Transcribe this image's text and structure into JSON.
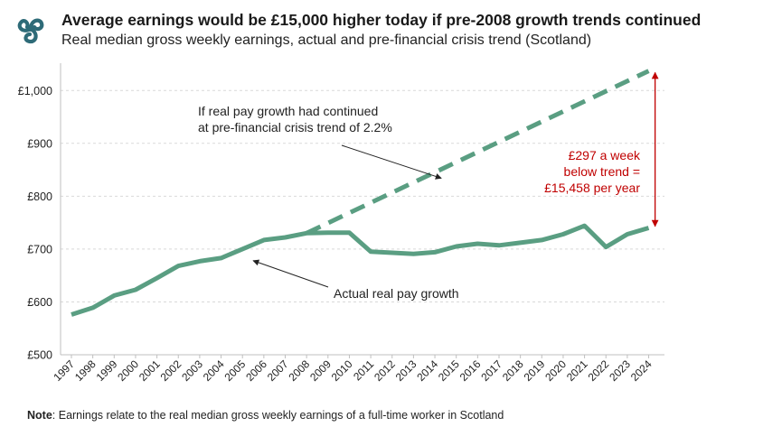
{
  "header": {
    "title": "Average earnings would be £15,000 higher today if pre-2008 growth trends continued",
    "subtitle": "Real median gross weekly earnings, actual and pre-financial crisis trend (Scotland)",
    "logo_icon": "triskele-logo-icon"
  },
  "note": {
    "label": "Note",
    "text": ": Earnings relate to the real median gross weekly earnings of a full-time worker in Scotland"
  },
  "colors": {
    "series": "#5a9e82",
    "annotation": "#c00000",
    "grid": "#d9d9d9",
    "logo": "#2e6b78"
  },
  "chart_data": {
    "type": "line",
    "title": "Real median gross weekly earnings, actual and pre-financial crisis trend (Scotland)",
    "xlabel": "",
    "ylabel": "",
    "ylim": [
      500,
      1050
    ],
    "y_ticks": [
      500,
      600,
      700,
      800,
      900,
      1000
    ],
    "y_tick_labels": [
      "£500",
      "£600",
      "£700",
      "£800",
      "£900",
      "£1,000"
    ],
    "grid": "horizontal dashed",
    "x": [
      1997,
      1998,
      1999,
      2000,
      2001,
      2002,
      2003,
      2004,
      2005,
      2006,
      2007,
      2008,
      2009,
      2010,
      2011,
      2012,
      2013,
      2014,
      2015,
      2016,
      2017,
      2018,
      2019,
      2020,
      2021,
      2022,
      2023,
      2024
    ],
    "x_tick_labels": [
      "1997",
      "1998",
      "1999",
      "2000",
      "2001",
      "2002",
      "2003",
      "2004",
      "2005",
      "2006",
      "2007",
      "2008",
      "2009",
      "2010",
      "2011",
      "2012",
      "2013",
      "2014",
      "2015",
      "2016",
      "2017",
      "2018",
      "2019",
      "2020",
      "2021",
      "2022",
      "2023",
      "2024"
    ],
    "series": [
      {
        "name": "Actual real pay growth",
        "style": "solid",
        "x": [
          1997,
          1998,
          1999,
          2000,
          2001,
          2002,
          2003,
          2004,
          2005,
          2006,
          2007,
          2008,
          2009,
          2010,
          2011,
          2012,
          2013,
          2014,
          2015,
          2016,
          2017,
          2018,
          2019,
          2020,
          2021,
          2022,
          2023,
          2024
        ],
        "values": [
          576,
          589,
          612,
          623,
          645,
          668,
          677,
          683,
          700,
          717,
          722,
          730,
          731,
          731,
          695,
          693,
          691,
          694,
          705,
          710,
          707,
          712,
          717,
          728,
          744,
          704,
          728,
          740
        ]
      },
      {
        "name": "If real pay growth had continued at pre-financial crisis trend of 2.2%",
        "style": "dashed",
        "x": [
          2008,
          2024
        ],
        "values": [
          730,
          1037
        ]
      }
    ],
    "annotations": [
      {
        "text_lines": [
          "If real pay growth had continued",
          "at pre-financial crisis trend of 2.2%"
        ],
        "points_to": {
          "x": 2014.3,
          "y": 834
        }
      },
      {
        "text_lines": [
          "Actual real pay growth"
        ],
        "points_to": {
          "x": 2005.5,
          "y": 678
        }
      },
      {
        "text_lines": [
          "£297 a week",
          "below trend =",
          "£15,458 per year"
        ],
        "range": {
          "x": 2024.3,
          "y_from": 743,
          "y_to": 1034
        }
      }
    ]
  }
}
